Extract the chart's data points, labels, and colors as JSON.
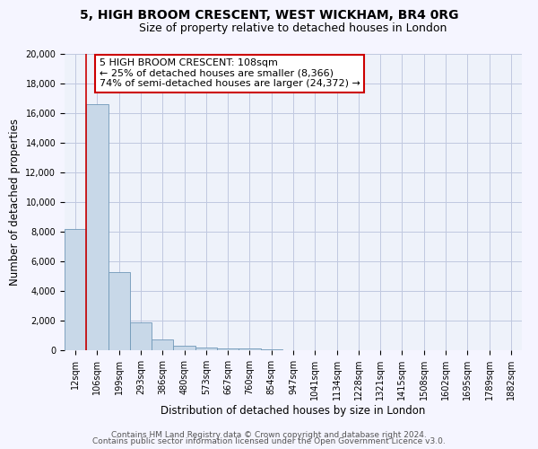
{
  "title": "5, HIGH BROOM CRESCENT, WEST WICKHAM, BR4 0RG",
  "subtitle": "Size of property relative to detached houses in London",
  "xlabel": "Distribution of detached houses by size in London",
  "ylabel": "Number of detached properties",
  "bar_color": "#c8d8e8",
  "bar_edge_color": "#7098b8",
  "background_color": "#eef2fa",
  "grid_color": "#c0c8e0",
  "fig_background": "#f5f5ff",
  "categories": [
    "12sqm",
    "106sqm",
    "199sqm",
    "293sqm",
    "386sqm",
    "480sqm",
    "573sqm",
    "667sqm",
    "760sqm",
    "854sqm",
    "947sqm",
    "1041sqm",
    "1134sqm",
    "1228sqm",
    "1321sqm",
    "1415sqm",
    "1508sqm",
    "1602sqm",
    "1695sqm",
    "1789sqm",
    "1882sqm"
  ],
  "values": [
    8200,
    16600,
    5300,
    1850,
    750,
    300,
    200,
    150,
    100,
    80,
    0,
    0,
    0,
    0,
    0,
    0,
    0,
    0,
    0,
    0,
    0
  ],
  "ylim": [
    0,
    20000
  ],
  "yticks": [
    0,
    2000,
    4000,
    6000,
    8000,
    10000,
    12000,
    14000,
    16000,
    18000,
    20000
  ],
  "property_line_x": 0.5,
  "property_line_color": "#cc0000",
  "ann_line1": "5 HIGH BROOM CRESCENT: 108sqm",
  "ann_line2": "← 25% of detached houses are smaller (8,366)",
  "ann_line3": "74% of semi-detached houses are larger (24,372) →",
  "annotation_box_color": "#ffffff",
  "annotation_box_edge": "#cc0000",
  "footer_line1": "Contains HM Land Registry data © Crown copyright and database right 2024.",
  "footer_line2": "Contains public sector information licensed under the Open Government Licence v3.0.",
  "title_fontsize": 10,
  "subtitle_fontsize": 9,
  "axis_label_fontsize": 8.5,
  "tick_fontsize": 7,
  "annotation_fontsize": 8,
  "footer_fontsize": 6.5
}
